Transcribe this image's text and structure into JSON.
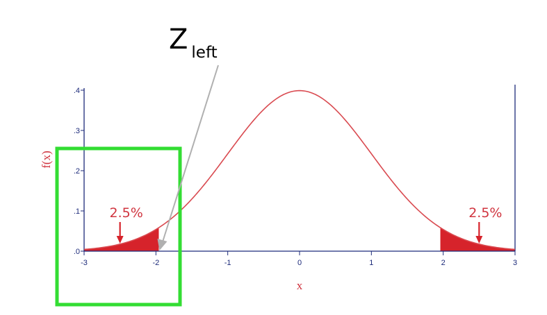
{
  "chart_data": {
    "type": "line",
    "title": "",
    "xlabel": "x",
    "ylabel": "f(x)",
    "xlim": [
      -3,
      3
    ],
    "ylim": [
      0,
      0.4
    ],
    "x_ticks": [
      -3,
      -2,
      -1,
      0,
      1,
      2,
      3
    ],
    "x_tick_labels": [
      "-3",
      "-2",
      "-1",
      "0",
      "1",
      "2",
      "3"
    ],
    "y_ticks": [
      0,
      0.1,
      0.2,
      0.3,
      0.4
    ],
    "y_tick_labels": [
      ".0",
      ".1",
      ".2",
      ".3",
      ".4"
    ],
    "curve": "standard normal density",
    "series": [
      {
        "x": [
          -3,
          -2.5,
          -2,
          -1.5,
          -1,
          -0.5,
          0,
          0.5,
          1,
          1.5,
          2,
          2.5,
          3
        ],
        "values": [
          0.0044,
          0.0175,
          0.054,
          0.1295,
          0.242,
          0.3521,
          0.3989,
          0.3521,
          0.242,
          0.1295,
          0.054,
          0.0175,
          0.0044
        ]
      }
    ],
    "shaded_tails": [
      {
        "from": -3,
        "to": -1.96,
        "label": "2.5%",
        "arrow_x": -2.5
      },
      {
        "from": 1.96,
        "to": 3,
        "label": "2.5%",
        "arrow_x": 2.5
      }
    ],
    "annotation": {
      "text": "Z",
      "subscript": "left",
      "points_to_x": -1.96
    },
    "colors": {
      "curve": "#d94a50",
      "fill": "#d6232b",
      "axis": "#1c2a7a",
      "label": "#d0343f",
      "highlight_box": "#33dd33",
      "pointer": "#b0b0b0"
    }
  }
}
